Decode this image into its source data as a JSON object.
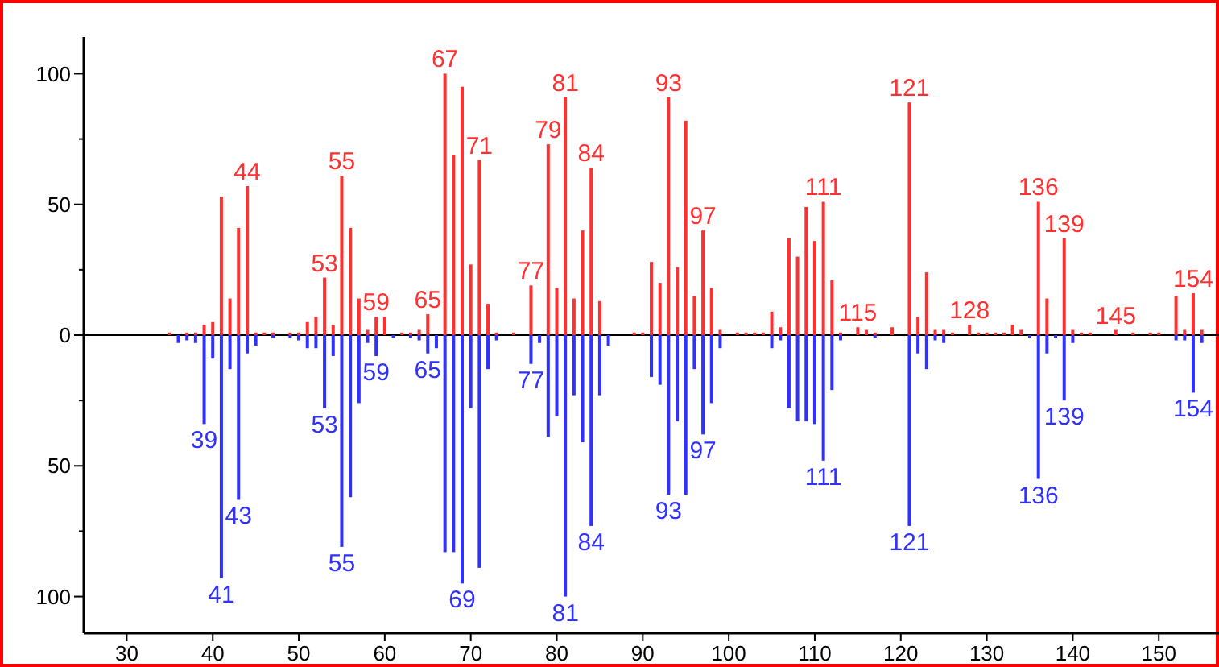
{
  "chart_data": {
    "type": "bar",
    "xlim": [
      25,
      157
    ],
    "xticks": [
      30,
      40,
      50,
      60,
      70,
      80,
      90,
      100,
      110,
      120,
      130,
      140,
      150
    ],
    "ylim": [
      -114,
      114
    ],
    "yticks": [
      {
        "value": -100,
        "label": "100"
      },
      {
        "value": -75,
        "label": null
      },
      {
        "value": -50,
        "label": "50"
      },
      {
        "value": -25,
        "label": null
      },
      0,
      {
        "value": 25,
        "label": null
      },
      50,
      {
        "value": 75,
        "label": null
      },
      100
    ],
    "series": [
      {
        "color": "#ff3030",
        "x": [
          35,
          37,
          38,
          39,
          40,
          41,
          42,
          43,
          44,
          45,
          46,
          47,
          49,
          50,
          51,
          52,
          53,
          54,
          55,
          56,
          57,
          58,
          59,
          60,
          62,
          63,
          64,
          65,
          67,
          68,
          69,
          70,
          71,
          72,
          73,
          75,
          77,
          79,
          80,
          81,
          82,
          83,
          84,
          85,
          89,
          90,
          91,
          92,
          93,
          94,
          95,
          96,
          97,
          98,
          99,
          101,
          102,
          103,
          104,
          105,
          106,
          107,
          108,
          109,
          110,
          111,
          112,
          113,
          115,
          116,
          117,
          119,
          121,
          122,
          123,
          124,
          125,
          126,
          128,
          129,
          130,
          131,
          132,
          133,
          134,
          136,
          137,
          139,
          140,
          141,
          142,
          145,
          147,
          149,
          150,
          152,
          153,
          154,
          155
        ],
        "values": [
          1,
          1,
          1,
          4,
          5,
          53,
          14,
          41,
          57,
          1,
          1,
          1,
          1,
          1,
          5,
          7,
          22,
          4,
          61,
          41,
          14,
          2,
          7,
          7,
          1,
          1,
          2,
          8,
          100,
          69,
          95,
          27,
          67,
          12,
          1,
          1,
          19,
          73,
          18,
          91,
          14,
          40,
          64,
          13,
          1,
          1,
          28,
          20,
          91,
          26,
          82,
          15,
          40,
          18,
          2,
          1,
          1,
          1,
          1,
          9,
          3,
          37,
          30,
          49,
          36,
          51,
          21,
          1,
          3,
          2,
          1,
          3,
          89,
          7,
          24,
          2,
          2,
          1,
          4,
          1,
          1,
          1,
          1,
          4,
          2,
          51,
          14,
          37,
          2,
          1,
          1,
          2,
          1,
          1,
          1,
          15,
          2,
          16,
          2
        ]
      },
      {
        "color": "#3030ff",
        "x": [
          36,
          37,
          38,
          39,
          40,
          41,
          42,
          43,
          44,
          45,
          47,
          49,
          50,
          51,
          52,
          53,
          54,
          55,
          56,
          57,
          58,
          59,
          61,
          63,
          64,
          65,
          66,
          67,
          68,
          69,
          70,
          71,
          72,
          73,
          77,
          78,
          79,
          80,
          81,
          82,
          83,
          84,
          85,
          86,
          91,
          92,
          93,
          94,
          95,
          96,
          97,
          98,
          99,
          105,
          106,
          107,
          108,
          109,
          110,
          111,
          112,
          113,
          117,
          121,
          122,
          123,
          124,
          125,
          135,
          136,
          137,
          138,
          139,
          140,
          152,
          153,
          154,
          155
        ],
        "values": [
          -3,
          -2,
          -3,
          -34,
          -9,
          -93,
          -13,
          -63,
          -7,
          -4,
          -1,
          -1,
          -2,
          -5,
          -5,
          -28,
          -8,
          -81,
          -62,
          -26,
          -3,
          -8,
          -1,
          -1,
          -2,
          -7,
          -5,
          -83,
          -83,
          -95,
          -28,
          -89,
          -13,
          -2,
          -11,
          -3,
          -39,
          -31,
          -100,
          -23,
          -41,
          -73,
          -23,
          -4,
          -16,
          -19,
          -61,
          -33,
          -61,
          -13,
          -38,
          -26,
          -5,
          -5,
          -2,
          -28,
          -33,
          -33,
          -34,
          -48,
          -21,
          -2,
          -1,
          -73,
          -7,
          -13,
          -2,
          -3,
          -1,
          -55,
          -7,
          -1,
          -25,
          -3,
          -2,
          -2,
          -22,
          -3
        ]
      }
    ],
    "annotations": [
      {
        "text": "44",
        "x": 44,
        "y": 57
      },
      {
        "text": "53",
        "x": 53,
        "y": 22
      },
      {
        "text": "55",
        "x": 55,
        "y": 61
      },
      {
        "text": "59",
        "x": 59,
        "y": 7
      },
      {
        "text": "65",
        "x": 65,
        "y": 8
      },
      {
        "text": "67",
        "x": 67,
        "y": 100
      },
      {
        "text": "71",
        "x": 71,
        "y": 67
      },
      {
        "text": "77",
        "x": 77,
        "y": 19
      },
      {
        "text": "79",
        "x": 79,
        "y": 73
      },
      {
        "text": "81",
        "x": 81,
        "y": 91
      },
      {
        "text": "84",
        "x": 84,
        "y": 64
      },
      {
        "text": "93",
        "x": 93,
        "y": 91
      },
      {
        "text": "97",
        "x": 97,
        "y": 40
      },
      {
        "text": "111",
        "x": 111,
        "y": 51
      },
      {
        "text": "115",
        "x": 115,
        "y": 3
      },
      {
        "text": "121",
        "x": 121,
        "y": 89
      },
      {
        "text": "128",
        "x": 128,
        "y": 4
      },
      {
        "text": "136",
        "x": 136,
        "y": 51
      },
      {
        "text": "139",
        "x": 139,
        "y": 37
      },
      {
        "text": "145",
        "x": 145,
        "y": 2
      },
      {
        "text": "154",
        "x": 154,
        "y": 16
      },
      {
        "text": "39",
        "x": 39,
        "y": -34
      },
      {
        "text": "41",
        "x": 41,
        "y": -93
      },
      {
        "text": "43",
        "x": 43,
        "y": -63
      },
      {
        "text": "53",
        "x": 53,
        "y": -28
      },
      {
        "text": "55",
        "x": 55,
        "y": -81
      },
      {
        "text": "59",
        "x": 59,
        "y": -8
      },
      {
        "text": "65",
        "x": 65,
        "y": -7
      },
      {
        "text": "69",
        "x": 69,
        "y": -95
      },
      {
        "text": "77",
        "x": 77,
        "y": -11
      },
      {
        "text": "81",
        "x": 81,
        "y": -100
      },
      {
        "text": "84",
        "x": 84,
        "y": -73
      },
      {
        "text": "93",
        "x": 93,
        "y": -61
      },
      {
        "text": "97",
        "x": 97,
        "y": -38
      },
      {
        "text": "111",
        "x": 111,
        "y": -48
      },
      {
        "text": "121",
        "x": 121,
        "y": -73
      },
      {
        "text": "136",
        "x": 136,
        "y": -55
      },
      {
        "text": "139",
        "x": 139,
        "y": -25
      },
      {
        "text": "154",
        "x": 154,
        "y": -22
      }
    ]
  }
}
